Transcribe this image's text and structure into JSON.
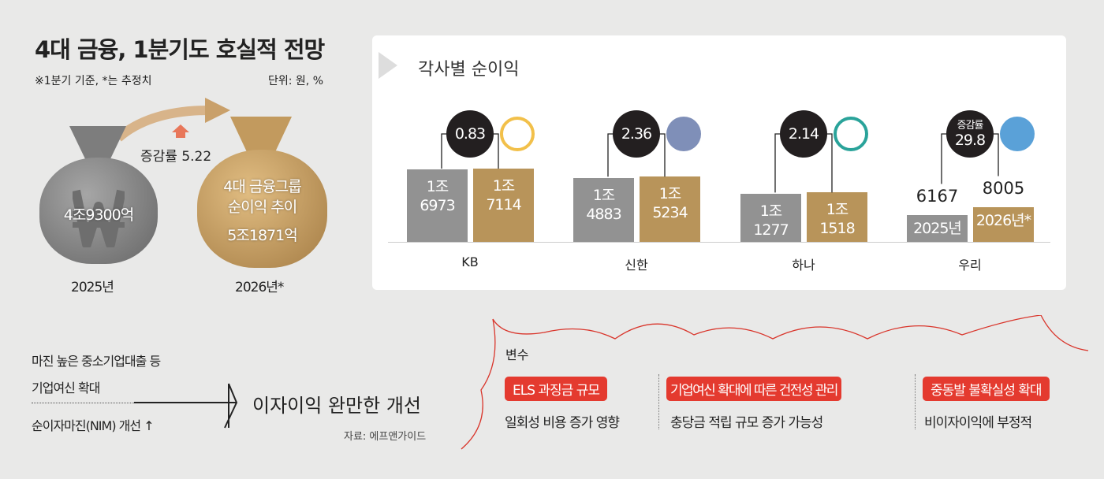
{
  "title": "4대 금융, 1분기도 호실적 전망",
  "note": "※1분기 기준, *는 추정치",
  "unit": "단위: 원, %",
  "summary": {
    "bag_2025": "4조9300억",
    "bag_2026_line1": "4대 금융그룹",
    "bag_2026_line2": "순이익 추이",
    "bag_2026": "5조1871억",
    "year_2025": "2025년",
    "year_2026": "2026년*",
    "growth": "증감률 5.22"
  },
  "chart_data": {
    "type": "bar",
    "title": "각사별 순이익",
    "unit": "억 원",
    "categories": [
      "KB",
      "신한",
      "하나",
      "우리"
    ],
    "series": [
      {
        "name": "2025년",
        "values": [
          16973,
          14883,
          11277,
          6167
        ],
        "labels": [
          "1조 6973",
          "1조 4883",
          "1조 1277",
          "6167"
        ],
        "color": "#929292"
      },
      {
        "name": "2026년*",
        "values": [
          17114,
          15234,
          11518,
          8005
        ],
        "labels": [
          "1조 7114",
          "1조 5234",
          "1조 1518",
          "8005"
        ],
        "color": "#b8945a"
      }
    ],
    "growth": [
      "0.83",
      "2.36",
      "2.14",
      "29.8"
    ],
    "growth_label": "증감률"
  },
  "bottom": {
    "left1": "마진 높은 중소기업대출 등",
    "left2": "기업여신 확대",
    "left3": "순이자마진(NIM) 개선 ↑",
    "headline": "이자이익 완만한 개선",
    "source": "자료: 에프앤가이드",
    "vars_title": "변수",
    "vars": [
      {
        "label": "ELS 과징금 규모",
        "desc": "일회성 비용 증가 영향"
      },
      {
        "label": "기업여신 확대에 따른 건전성 관리",
        "desc": "충당금 적립 규모 증가 가능성"
      },
      {
        "label": "중동발 불확실성 확대",
        "desc": "비이자이익에 부정적"
      }
    ]
  }
}
